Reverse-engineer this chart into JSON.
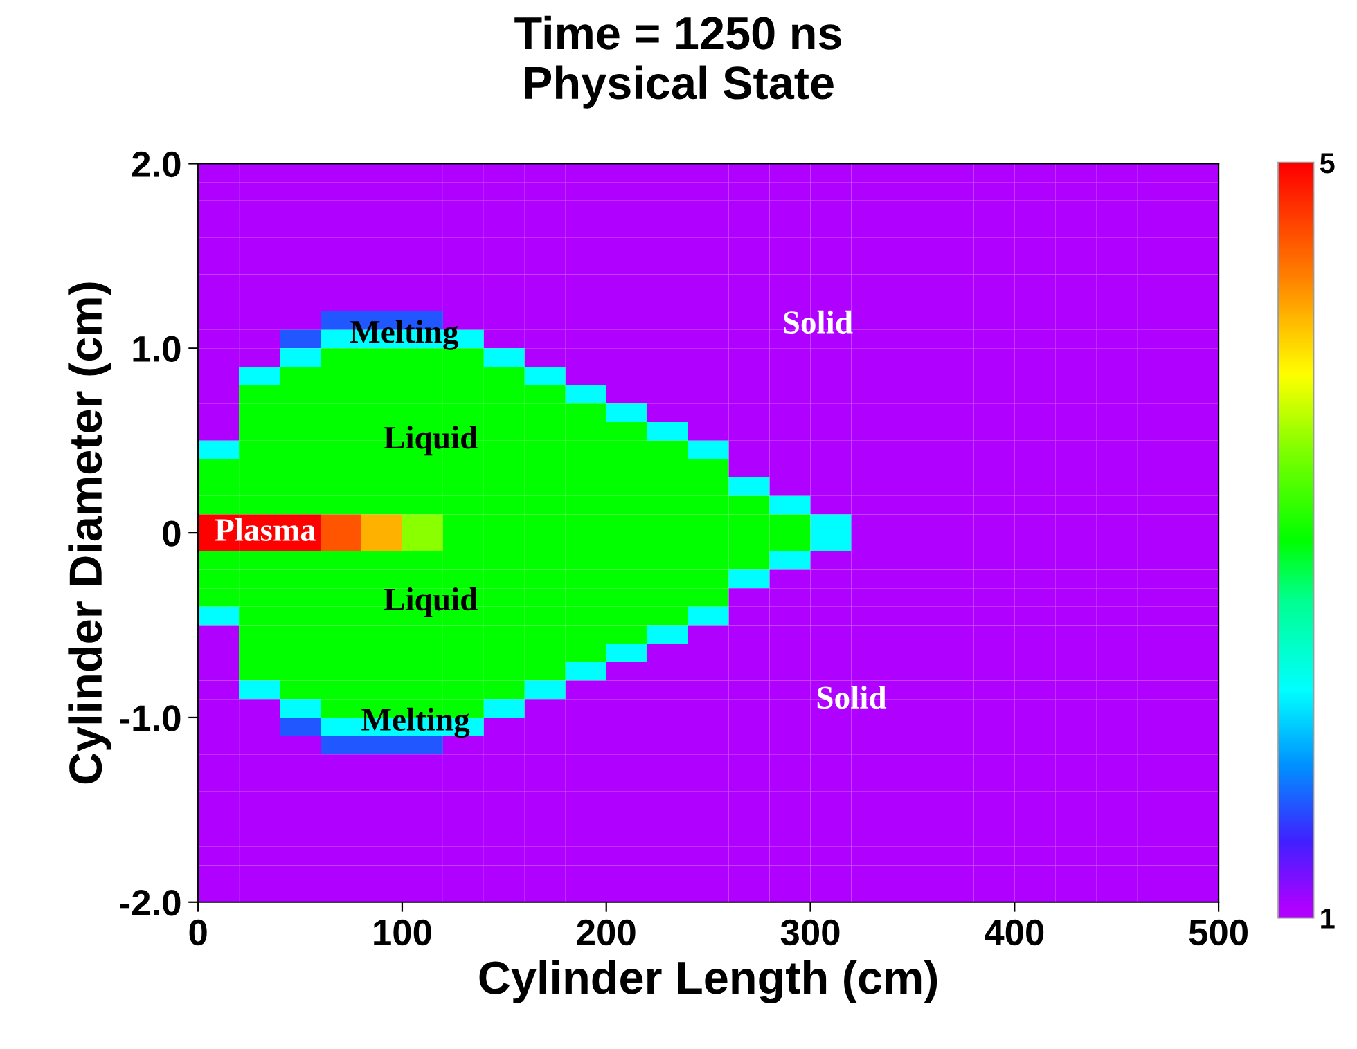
{
  "chart_data": {
    "type": "heatmap",
    "title": "Time = 1250 ns\nPhysical State",
    "xlabel": "Cylinder Length (cm)",
    "ylabel": "Cylinder Diameter (cm)",
    "x": [
      10,
      30,
      50,
      70,
      90,
      110,
      130,
      150,
      170,
      190,
      210,
      230,
      250,
      270,
      290,
      310,
      330,
      350,
      370,
      390,
      410,
      430,
      450,
      470,
      490
    ],
    "y": [
      1.95,
      1.85,
      1.75,
      1.65,
      1.55,
      1.45,
      1.35,
      1.25,
      1.15,
      1.05,
      0.95,
      0.85,
      0.75,
      0.65,
      0.55,
      0.45,
      0.35,
      0.25,
      0.15,
      0.05,
      -0.05,
      -0.15,
      -0.25,
      -0.35,
      -0.45,
      -0.55,
      -0.65,
      -0.75,
      -0.85,
      -0.95,
      -1.05,
      -1.15,
      -1.25,
      -1.35,
      -1.45,
      -1.55,
      -1.65,
      -1.75,
      -1.85,
      -1.95
    ],
    "xlim": [
      0,
      500
    ],
    "ylim": [
      -2,
      2
    ],
    "xticks": [
      0,
      100,
      200,
      300,
      400,
      500
    ],
    "yticks": [
      {
        "value": -2,
        "label": "-2.0"
      },
      {
        "value": -1,
        "label": "-1.0"
      },
      0,
      {
        "value": 1,
        "label": "1.0"
      },
      {
        "value": 2,
        "label": "2.0"
      }
    ],
    "clim": [
      1,
      5
    ],
    "cticks": [
      1,
      5
    ],
    "grid": false,
    "annotations": [
      "Melting",
      "Liquid",
      "Plasma",
      "Liquid",
      "Melting",
      "Solid",
      "Solid"
    ],
    "cells": [
      [
        1,
        1,
        1,
        1,
        1,
        1,
        1,
        1,
        1,
        1,
        1,
        1,
        1,
        1,
        1,
        1,
        1,
        1,
        1,
        1,
        1,
        1,
        1,
        1,
        1
      ],
      [
        1,
        1,
        1,
        1,
        1,
        1,
        1,
        1,
        1,
        1,
        1,
        1,
        1,
        1,
        1,
        1,
        1,
        1,
        1,
        1,
        1,
        1,
        1,
        1,
        1
      ],
      [
        1,
        1,
        1,
        1,
        1,
        1,
        1,
        1,
        1,
        1,
        1,
        1,
        1,
        1,
        1,
        1,
        1,
        1,
        1,
        1,
        1,
        1,
        1,
        1,
        1
      ],
      [
        1,
        1,
        1,
        1,
        1,
        1,
        1,
        1,
        1,
        1,
        1,
        1,
        1,
        1,
        1,
        1,
        1,
        1,
        1,
        1,
        1,
        1,
        1,
        1,
        1
      ],
      [
        1,
        1,
        1,
        1,
        1,
        1,
        1,
        1,
        1,
        1,
        1,
        1,
        1,
        1,
        1,
        1,
        1,
        1,
        1,
        1,
        1,
        1,
        1,
        1,
        1
      ],
      [
        1,
        1,
        1,
        1,
        1,
        1,
        1,
        1,
        1,
        1,
        1,
        1,
        1,
        1,
        1,
        1,
        1,
        1,
        1,
        1,
        1,
        1,
        1,
        1,
        1
      ],
      [
        1,
        1,
        1,
        1,
        1,
        1,
        1,
        1,
        1,
        1,
        1,
        1,
        1,
        1,
        1,
        1,
        1,
        1,
        1,
        1,
        1,
        1,
        1,
        1,
        1
      ],
      [
        1,
        1,
        1,
        1,
        1,
        1,
        1,
        1,
        1,
        1,
        1,
        1,
        1,
        1,
        1,
        1,
        1,
        1,
        1,
        1,
        1,
        1,
        1,
        1,
        1
      ],
      [
        1,
        1,
        1,
        1.6,
        1.6,
        1.6,
        1,
        1,
        1,
        1,
        1,
        1,
        1,
        1,
        1,
        1,
        1,
        1,
        1,
        1,
        1,
        1,
        1,
        1,
        1
      ],
      [
        1,
        1,
        1.6,
        2.2,
        2.2,
        2.2,
        2.2,
        1,
        1,
        1,
        1,
        1,
        1,
        1,
        1,
        1,
        1,
        1,
        1,
        1,
        1,
        1,
        1,
        1,
        1
      ],
      [
        1,
        1,
        2.2,
        3,
        3,
        3,
        3,
        2.2,
        1,
        1,
        1,
        1,
        1,
        1,
        1,
        1,
        1,
        1,
        1,
        1,
        1,
        1,
        1,
        1,
        1
      ],
      [
        1,
        2.2,
        3,
        3,
        3,
        3,
        3,
        3,
        2.2,
        1,
        1,
        1,
        1,
        1,
        1,
        1,
        1,
        1,
        1,
        1,
        1,
        1,
        1,
        1,
        1
      ],
      [
        1,
        3,
        3,
        3,
        3,
        3,
        3,
        3,
        3,
        2.2,
        1,
        1,
        1,
        1,
        1,
        1,
        1,
        1,
        1,
        1,
        1,
        1,
        1,
        1,
        1
      ],
      [
        1,
        3,
        3,
        3,
        3,
        3,
        3,
        3,
        3,
        3,
        2.2,
        1,
        1,
        1,
        1,
        1,
        1,
        1,
        1,
        1,
        1,
        1,
        1,
        1,
        1
      ],
      [
        1,
        3,
        3,
        3,
        3,
        3,
        3,
        3,
        3,
        3,
        3,
        2.2,
        1,
        1,
        1,
        1,
        1,
        1,
        1,
        1,
        1,
        1,
        1,
        1,
        1
      ],
      [
        2.2,
        3,
        3,
        3,
        3,
        3,
        3,
        3,
        3,
        3,
        3,
        3,
        2.2,
        1,
        1,
        1,
        1,
        1,
        1,
        1,
        1,
        1,
        1,
        1,
        1
      ],
      [
        3,
        3,
        3,
        3,
        3,
        3,
        3,
        3,
        3,
        3,
        3,
        3,
        3,
        1,
        1,
        1,
        1,
        1,
        1,
        1,
        1,
        1,
        1,
        1,
        1
      ],
      [
        3,
        3,
        3,
        3,
        3,
        3,
        3,
        3,
        3,
        3,
        3,
        3,
        3,
        2.2,
        1,
        1,
        1,
        1,
        1,
        1,
        1,
        1,
        1,
        1,
        1
      ],
      [
        3,
        3,
        3,
        3,
        3,
        3,
        3,
        3,
        3,
        3,
        3,
        3,
        3,
        3,
        2.2,
        1,
        1,
        1,
        1,
        1,
        1,
        1,
        1,
        1,
        1
      ],
      [
        5,
        5,
        5,
        4.6,
        4.2,
        3.5,
        3,
        3,
        3,
        3,
        3,
        3,
        3,
        3,
        3,
        2.2,
        1,
        1,
        1,
        1,
        1,
        1,
        1,
        1,
        1
      ],
      [
        5,
        5,
        5,
        4.6,
        4.2,
        3.5,
        3,
        3,
        3,
        3,
        3,
        3,
        3,
        3,
        3,
        2.2,
        1,
        1,
        1,
        1,
        1,
        1,
        1,
        1,
        1
      ],
      [
        3,
        3,
        3,
        3,
        3,
        3,
        3,
        3,
        3,
        3,
        3,
        3,
        3,
        3,
        2.2,
        1,
        1,
        1,
        1,
        1,
        1,
        1,
        1,
        1,
        1
      ],
      [
        3,
        3,
        3,
        3,
        3,
        3,
        3,
        3,
        3,
        3,
        3,
        3,
        3,
        2.2,
        1,
        1,
        1,
        1,
        1,
        1,
        1,
        1,
        1,
        1,
        1
      ],
      [
        3,
        3,
        3,
        3,
        3,
        3,
        3,
        3,
        3,
        3,
        3,
        3,
        3,
        1,
        1,
        1,
        1,
        1,
        1,
        1,
        1,
        1,
        1,
        1,
        1
      ],
      [
        2.2,
        3,
        3,
        3,
        3,
        3,
        3,
        3,
        3,
        3,
        3,
        3,
        2.2,
        1,
        1,
        1,
        1,
        1,
        1,
        1,
        1,
        1,
        1,
        1,
        1
      ],
      [
        1,
        3,
        3,
        3,
        3,
        3,
        3,
        3,
        3,
        3,
        3,
        2.2,
        1,
        1,
        1,
        1,
        1,
        1,
        1,
        1,
        1,
        1,
        1,
        1,
        1
      ],
      [
        1,
        3,
        3,
        3,
        3,
        3,
        3,
        3,
        3,
        3,
        2.2,
        1,
        1,
        1,
        1,
        1,
        1,
        1,
        1,
        1,
        1,
        1,
        1,
        1,
        1
      ],
      [
        1,
        3,
        3,
        3,
        3,
        3,
        3,
        3,
        3,
        2.2,
        1,
        1,
        1,
        1,
        1,
        1,
        1,
        1,
        1,
        1,
        1,
        1,
        1,
        1,
        1
      ],
      [
        1,
        2.2,
        3,
        3,
        3,
        3,
        3,
        3,
        2.2,
        1,
        1,
        1,
        1,
        1,
        1,
        1,
        1,
        1,
        1,
        1,
        1,
        1,
        1,
        1,
        1
      ],
      [
        1,
        1,
        2.2,
        3,
        3,
        3,
        3,
        2.2,
        1,
        1,
        1,
        1,
        1,
        1,
        1,
        1,
        1,
        1,
        1,
        1,
        1,
        1,
        1,
        1,
        1
      ],
      [
        1,
        1,
        1.6,
        2.2,
        2.2,
        2.2,
        2.2,
        1,
        1,
        1,
        1,
        1,
        1,
        1,
        1,
        1,
        1,
        1,
        1,
        1,
        1,
        1,
        1,
        1,
        1
      ],
      [
        1,
        1,
        1,
        1.6,
        1.6,
        1.6,
        1,
        1,
        1,
        1,
        1,
        1,
        1,
        1,
        1,
        1,
        1,
        1,
        1,
        1,
        1,
        1,
        1,
        1,
        1
      ],
      [
        1,
        1,
        1,
        1,
        1,
        1,
        1,
        1,
        1,
        1,
        1,
        1,
        1,
        1,
        1,
        1,
        1,
        1,
        1,
        1,
        1,
        1,
        1,
        1,
        1
      ],
      [
        1,
        1,
        1,
        1,
        1,
        1,
        1,
        1,
        1,
        1,
        1,
        1,
        1,
        1,
        1,
        1,
        1,
        1,
        1,
        1,
        1,
        1,
        1,
        1,
        1
      ],
      [
        1,
        1,
        1,
        1,
        1,
        1,
        1,
        1,
        1,
        1,
        1,
        1,
        1,
        1,
        1,
        1,
        1,
        1,
        1,
        1,
        1,
        1,
        1,
        1,
        1
      ],
      [
        1,
        1,
        1,
        1,
        1,
        1,
        1,
        1,
        1,
        1,
        1,
        1,
        1,
        1,
        1,
        1,
        1,
        1,
        1,
        1,
        1,
        1,
        1,
        1,
        1
      ],
      [
        1,
        1,
        1,
        1,
        1,
        1,
        1,
        1,
        1,
        1,
        1,
        1,
        1,
        1,
        1,
        1,
        1,
        1,
        1,
        1,
        1,
        1,
        1,
        1,
        1
      ],
      [
        1,
        1,
        1,
        1,
        1,
        1,
        1,
        1,
        1,
        1,
        1,
        1,
        1,
        1,
        1,
        1,
        1,
        1,
        1,
        1,
        1,
        1,
        1,
        1,
        1
      ],
      [
        1,
        1,
        1,
        1,
        1,
        1,
        1,
        1,
        1,
        1,
        1,
        1,
        1,
        1,
        1,
        1,
        1,
        1,
        1,
        1,
        1,
        1,
        1,
        1,
        1
      ],
      [
        1,
        1,
        1,
        1,
        1,
        1,
        1,
        1,
        1,
        1,
        1,
        1,
        1,
        1,
        1,
        1,
        1,
        1,
        1,
        1,
        1,
        1,
        1,
        1,
        1
      ]
    ]
  }
}
